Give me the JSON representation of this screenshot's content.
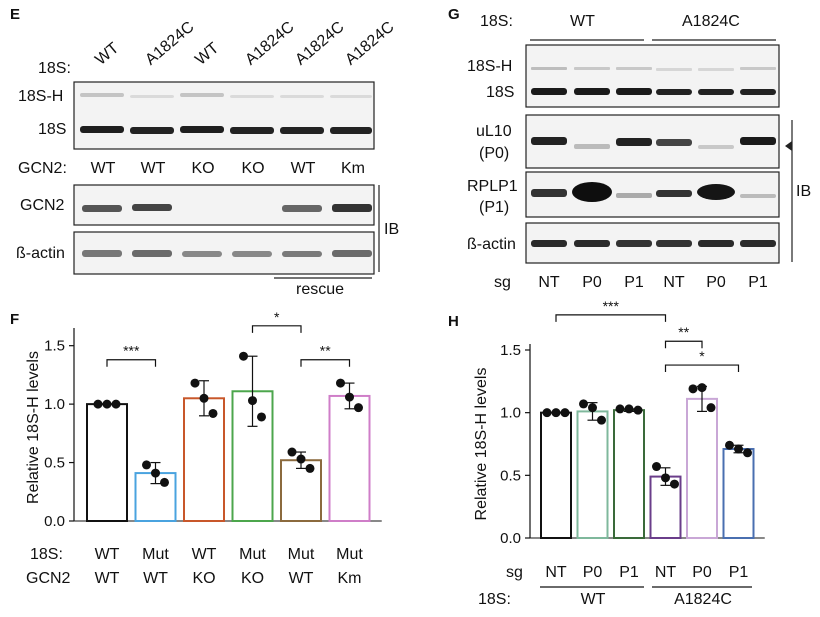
{
  "panels": {
    "E": {
      "letter": "E",
      "row18s_label": "18S:",
      "lane18s": [
        "WT",
        "A1824C",
        "WT",
        "A1824C",
        "A1824C",
        "A1824C"
      ],
      "blot1_labels": [
        "18S-H",
        "18S"
      ],
      "gcn2_label": "GCN2:",
      "lane_gcn2": [
        "WT",
        "WT",
        "KO",
        "KO",
        "WT",
        "Km"
      ],
      "blot2_label": "GCN2",
      "blot3_label": "ß-actin",
      "ib": "IB",
      "rescue": "rescue"
    },
    "G": {
      "letter": "G",
      "row18s_label": "18S:",
      "groups": [
        "WT",
        "A1824C"
      ],
      "blot_labels": [
        "18S-H",
        "18S",
        "uL10",
        "(P0)",
        "RPLP1",
        "(P1)",
        "ß-actin"
      ],
      "ib": "IB",
      "sg_label": "sg",
      "lanes": [
        "NT",
        "P0",
        "P1",
        "NT",
        "P0",
        "P1"
      ]
    }
  },
  "chart_data": [
    {
      "panel": "F",
      "type": "bar",
      "ylabel": "Relative 18S-H  levels",
      "ylim": [
        0,
        1.6
      ],
      "yticks": [
        "0.0",
        "0.5",
        "1.0",
        "1.5"
      ],
      "row_labels": [
        "18S:",
        "GCN2"
      ],
      "categories_18s": [
        "WT",
        "Mut",
        "WT",
        "Mut",
        "Mut",
        "Mut"
      ],
      "categories_gcn2": [
        "WT",
        "WT",
        "KO",
        "KO",
        "WT",
        "Km"
      ],
      "values": [
        1.0,
        0.41,
        1.05,
        1.11,
        0.52,
        1.07
      ],
      "errors": [
        0.0,
        0.09,
        0.15,
        0.3,
        0.07,
        0.11
      ],
      "points": [
        [
          1.0,
          1.0,
          1.0
        ],
        [
          0.48,
          0.41,
          0.33
        ],
        [
          1.18,
          1.05,
          0.92
        ],
        [
          1.41,
          1.03,
          0.89
        ],
        [
          0.59,
          0.53,
          0.45
        ],
        [
          1.18,
          1.06,
          0.97
        ]
      ],
      "colors": [
        "#111111",
        "#4aa3df",
        "#c8572a",
        "#4ca64c",
        "#8b6a3e",
        "#cf7ec8"
      ],
      "annotations": [
        {
          "from": 0,
          "to": 1,
          "level": 1.38,
          "label": "***"
        },
        {
          "from": 3,
          "to": 4,
          "level": 1.67,
          "label": "*"
        },
        {
          "from": 4,
          "to": 5,
          "level": 1.38,
          "label": "**"
        }
      ]
    },
    {
      "panel": "H",
      "type": "bar",
      "ylabel": "Relative 18S-H levels",
      "ylim": [
        0,
        1.5
      ],
      "yticks": [
        "0.0",
        "0.5",
        "1.0",
        "1.5"
      ],
      "sg_label": "sg",
      "categories": [
        "NT",
        "P0",
        "P1",
        "NT",
        "P0",
        "P1"
      ],
      "group_label": "18S:",
      "groups": [
        "WT",
        "A1824C"
      ],
      "values": [
        1.0,
        1.01,
        1.02,
        0.49,
        1.11,
        0.71
      ],
      "errors": [
        0.0,
        0.07,
        0.01,
        0.07,
        0.1,
        0.03
      ],
      "points": [
        [
          1.0,
          1.0,
          1.0
        ],
        [
          1.07,
          1.04,
          0.94
        ],
        [
          1.03,
          1.03,
          1.02
        ],
        [
          0.57,
          0.48,
          0.43
        ],
        [
          1.19,
          1.2,
          1.04
        ],
        [
          0.74,
          0.71,
          0.68
        ]
      ],
      "colors": [
        "#111111",
        "#7fb89c",
        "#3a6a3a",
        "#6a3d8a",
        "#c9a7d6",
        "#4a6fb0"
      ],
      "annotations": [
        {
          "from": 0,
          "to": 3,
          "level": 1.78,
          "label": "***"
        },
        {
          "from": 3,
          "to": 4,
          "level": 1.57,
          "label": "**"
        },
        {
          "from": 3,
          "to": 5,
          "level": 1.38,
          "label": "*"
        }
      ]
    }
  ]
}
